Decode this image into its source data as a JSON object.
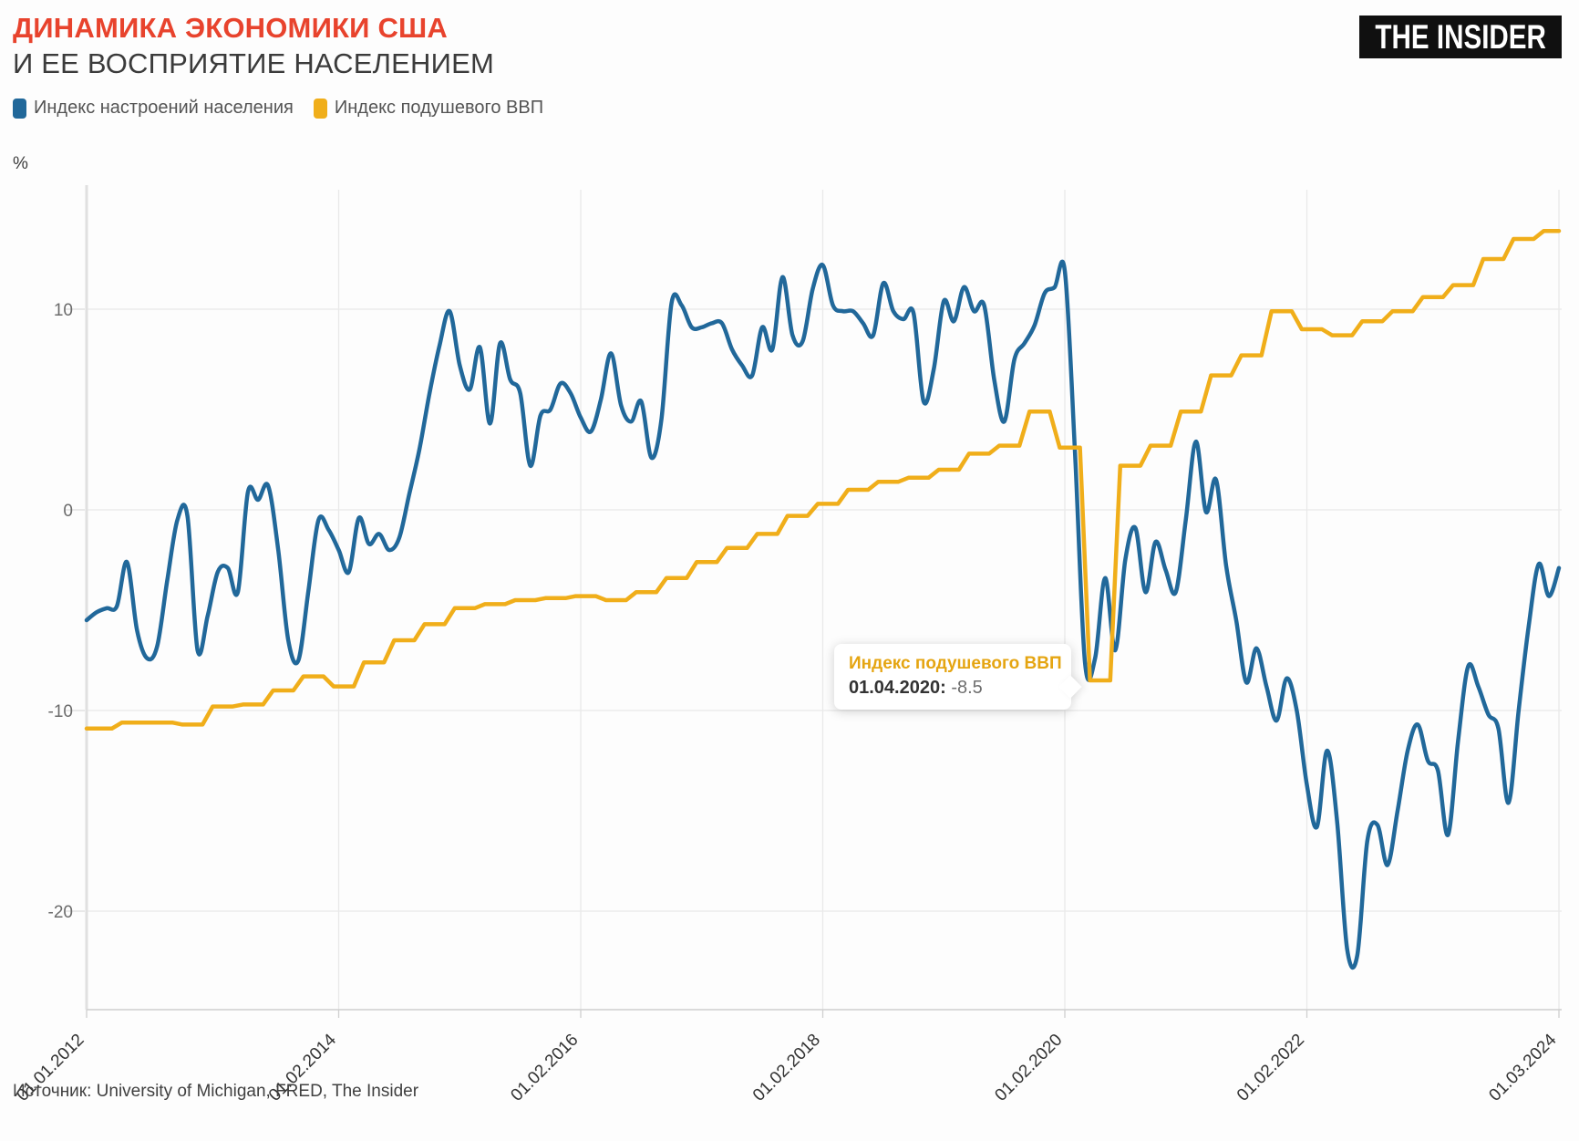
{
  "header": {
    "title": "ДИНАМИКА ЭКОНОМИКИ США",
    "subtitle": "И ЕЕ ВОСПРИЯТИЕ НАСЕЛЕНИЕМ",
    "logo": "THE INSIDER"
  },
  "legend": [
    {
      "label": "Индекс настроений населения",
      "color": "#21689a"
    },
    {
      "label": "Индекс подушевого ВВП",
      "color": "#f0ae1a"
    }
  ],
  "axes": {
    "y_unit": "%",
    "y_ticks": [
      10,
      0,
      -10,
      -20
    ],
    "x_ticks": [
      "01.01.2012",
      "01.02.2014",
      "01.02.2016",
      "01.02.2018",
      "01.02.2020",
      "01.02.2022",
      "01.03.2024"
    ]
  },
  "tooltip": {
    "title": "Индекс подушевого ВВП",
    "date_label": "01.04.2020:",
    "value": "-8.5"
  },
  "source": "Источник: University of Michigan, FRED, The Insider",
  "colors": {
    "title_accent": "#e8432d",
    "sentiment_line": "#21689a",
    "gdp_line": "#f0ae1a",
    "grid": "#e9e9e9",
    "axis": "#dedede",
    "logo_bg": "#101010"
  },
  "chart_data": {
    "type": "line",
    "title": "ДИНАМИКА ЭКОНОМИКИ США и ее восприятие населением",
    "xlabel": "",
    "ylabel": "%",
    "x_start": "2012-01",
    "x_end": "2024-03",
    "x_total_months": 146,
    "ylim": [
      -25,
      16
    ],
    "grid": true,
    "legend_position": "top-left",
    "x_tick_labels": [
      "01.01.2012",
      "01.02.2014",
      "01.02.2016",
      "01.02.2018",
      "01.02.2020",
      "01.02.2022",
      "01.03.2024"
    ],
    "x_tick_months": [
      0,
      25,
      49,
      73,
      97,
      121,
      146
    ],
    "y_gridlines": [
      10,
      0,
      -10,
      -20
    ],
    "series": [
      {
        "name": "Индекс настроений населения",
        "color": "#21689a",
        "interval": "monthly",
        "style": "smooth",
        "values": [
          -5.5,
          -5.1,
          -4.9,
          -4.8,
          -2.6,
          -6.0,
          -7.4,
          -6.8,
          -3.5,
          -0.5,
          -0.3,
          -7.0,
          -5.3,
          -3.1,
          -2.9,
          -4.1,
          0.9,
          0.5,
          1.2,
          -2.0,
          -6.5,
          -7.5,
          -4.0,
          -0.5,
          -1.0,
          -2.0,
          -3.1,
          -0.4,
          -1.7,
          -1.2,
          -2.0,
          -1.4,
          0.8,
          3.0,
          5.8,
          8.2,
          9.9,
          7.2,
          6.0,
          8.1,
          4.3,
          8.3,
          6.5,
          5.8,
          2.2,
          4.7,
          5.0,
          6.3,
          5.8,
          4.6,
          3.9,
          5.5,
          7.8,
          5.2,
          4.4,
          5.4,
          2.6,
          4.5,
          10.3,
          10.2,
          9.1,
          9.1,
          9.3,
          9.3,
          8.0,
          7.2,
          6.7,
          9.1,
          8.0,
          11.6,
          8.7,
          8.4,
          11.0,
          12.2,
          10.2,
          9.9,
          9.9,
          9.3,
          8.7,
          11.3,
          9.9,
          9.5,
          9.8,
          5.4,
          7.0,
          10.4,
          9.4,
          11.1,
          9.9,
          10.2,
          6.5,
          4.4,
          7.5,
          8.3,
          9.2,
          10.8,
          11.1,
          11.9,
          3.0,
          -7.6,
          -7.4,
          -3.4,
          -7.0,
          -2.5,
          -0.9,
          -4.1,
          -1.6,
          -3.0,
          -4.1,
          -0.5,
          3.4,
          -0.1,
          1.5,
          -2.8,
          -5.5,
          -8.6,
          -6.9,
          -8.8,
          -10.5,
          -8.4,
          -10.0,
          -13.7,
          -15.8,
          -12.0,
          -15.5,
          -21.9,
          -22.2,
          -16.5,
          -15.7,
          -17.7,
          -15.0,
          -12.0,
          -10.7,
          -12.5,
          -13.0,
          -16.2,
          -11.5,
          -7.8,
          -8.8,
          -10.2,
          -10.9,
          -14.6,
          -10.0,
          -5.8,
          -2.7,
          -4.3,
          -2.9
        ]
      },
      {
        "name": "Индекс подушевого ВВП",
        "color": "#f0ae1a",
        "interval": "quarterly",
        "style": "step",
        "values": [
          -10.9,
          -10.6,
          -10.6,
          -10.7,
          -9.8,
          -9.7,
          -9.0,
          -8.3,
          -8.8,
          -7.6,
          -6.5,
          -5.7,
          -4.9,
          -4.7,
          -4.5,
          -4.4,
          -4.3,
          -4.5,
          -4.1,
          -3.4,
          -2.6,
          -1.9,
          -1.2,
          -0.3,
          0.3,
          1.0,
          1.4,
          1.6,
          2.0,
          2.8,
          3.2,
          4.9,
          3.1,
          -8.5,
          2.2,
          3.2,
          4.9,
          6.7,
          7.7,
          9.9,
          9.0,
          8.7,
          9.4,
          9.9,
          10.6,
          11.2,
          12.5,
          13.5,
          13.9
        ]
      }
    ],
    "annotation": {
      "series": "Индекс подушевого ВВП",
      "date": "01.04.2020",
      "value": -8.5
    }
  }
}
